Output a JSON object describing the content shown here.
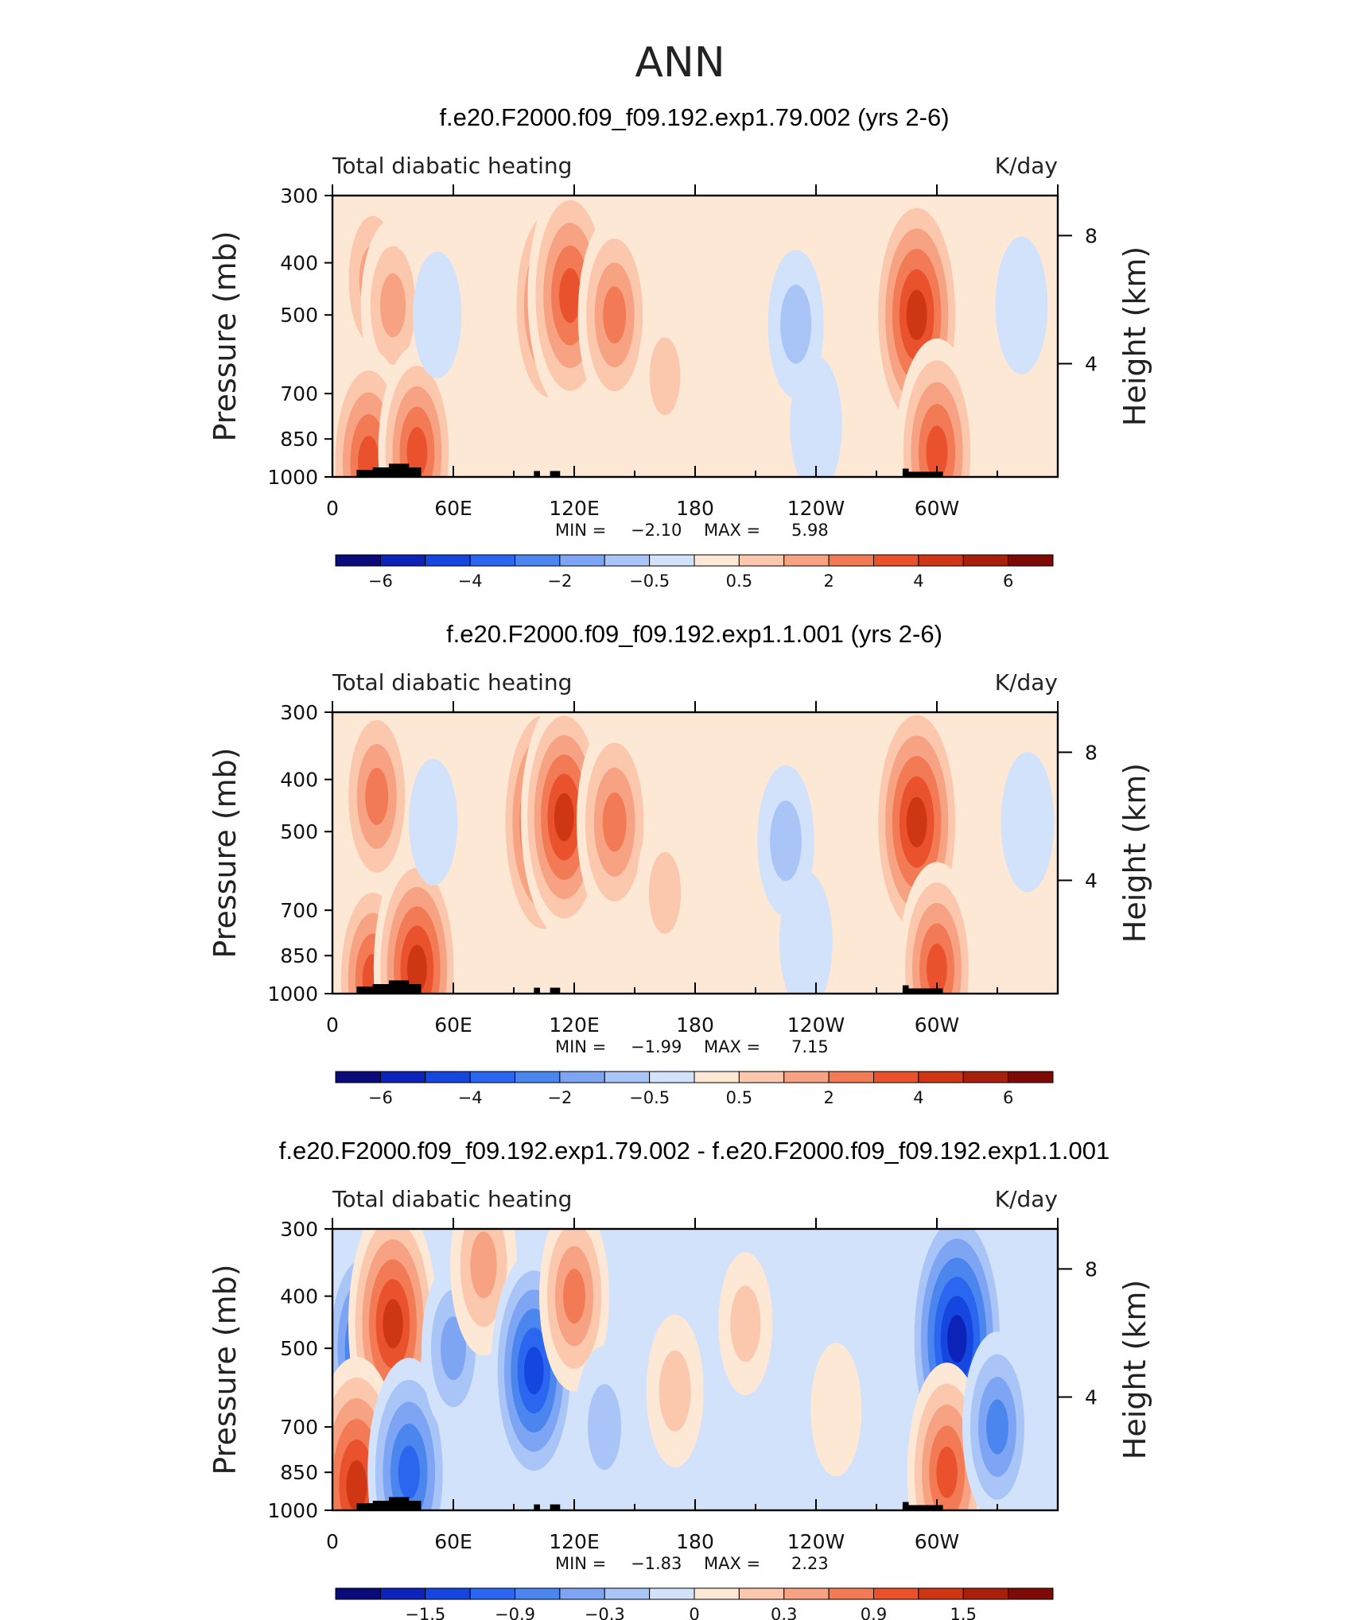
{
  "figure": {
    "main_title": "ANN"
  },
  "chart_data": [
    {
      "type": "heatmap",
      "title": "f.e20.F2000.f09_f09.192.exp1.79.002 (yrs 2-6)",
      "left_label": "Total diabatic heating",
      "right_label": "K/day",
      "ylabel": "Pressure (mb)",
      "ylabel_right": "Height (km)",
      "x_ticks": [
        "0",
        "60E",
        "120E",
        "180",
        "120W",
        "60W"
      ],
      "y_ticks": [
        "300",
        "400",
        "500",
        "700",
        "850",
        "1000"
      ],
      "y_right_ticks": [
        "8",
        "4"
      ],
      "ylim": [
        1000,
        300
      ],
      "stats": {
        "min_label": "MIN =",
        "min": "−2.10",
        "max_label": "MAX =",
        "max": "5.98"
      },
      "colorbar_labels": [
        "−6",
        "−4",
        "−2",
        "−0.5",
        "0.5",
        "2",
        "4",
        "6"
      ],
      "colorbar_colors": [
        "#0a0a7a",
        "#0c22b8",
        "#1646e0",
        "#2a66f0",
        "#4a86ee",
        "#7ea4f4",
        "#a9c4f7",
        "#d2e2fb",
        "#fde8d6",
        "#fbc8ae",
        "#f7a282",
        "#f27a54",
        "#e9522c",
        "#cf3614",
        "#a81f0c",
        "#7e0a06"
      ],
      "features": [
        {
          "lon": 20,
          "plev": 430,
          "v": 3.0
        },
        {
          "lon": 30,
          "plev": 480,
          "v": 2.5
        },
        {
          "lon": 18,
          "plev": 940,
          "v": 4.5
        },
        {
          "lon": 42,
          "plev": 900,
          "v": 4.0
        },
        {
          "lon": 52,
          "plev": 500,
          "v": -0.8
        },
        {
          "lon": 108,
          "plev": 480,
          "v": 4.5
        },
        {
          "lon": 118,
          "plev": 460,
          "v": 4.8
        },
        {
          "lon": 140,
          "plev": 500,
          "v": 3.5
        },
        {
          "lon": 165,
          "plev": 650,
          "v": 1.5
        },
        {
          "lon": 230,
          "plev": 520,
          "v": -1.6
        },
        {
          "lon": 240,
          "plev": 800,
          "v": -1.2
        },
        {
          "lon": 290,
          "plev": 500,
          "v": 5.5
        },
        {
          "lon": 300,
          "plev": 900,
          "v": 4.5
        },
        {
          "lon": 342,
          "plev": 480,
          "v": -1.2
        }
      ]
    },
    {
      "type": "heatmap",
      "title": "f.e20.F2000.f09_f09.192.exp1.1.001 (yrs 2-6)",
      "left_label": "Total diabatic heating",
      "right_label": "K/day",
      "ylabel": "Pressure (mb)",
      "ylabel_right": "Height (km)",
      "x_ticks": [
        "0",
        "60E",
        "120E",
        "180",
        "120W",
        "60W"
      ],
      "y_ticks": [
        "300",
        "400",
        "500",
        "700",
        "850",
        "1000"
      ],
      "y_right_ticks": [
        "8",
        "4"
      ],
      "ylim": [
        1000,
        300
      ],
      "stats": {
        "min_label": "MIN =",
        "min": "−1.99",
        "max_label": "MAX =",
        "max": "7.15"
      },
      "colorbar_labels": [
        "−6",
        "−4",
        "−2",
        "−0.5",
        "0.5",
        "2",
        "4",
        "6"
      ],
      "colorbar_colors": [
        "#0a0a7a",
        "#0c22b8",
        "#1646e0",
        "#2a66f0",
        "#4a86ee",
        "#7ea4f4",
        "#a9c4f7",
        "#d2e2fb",
        "#fde8d6",
        "#fbc8ae",
        "#f7a282",
        "#f27a54",
        "#e9522c",
        "#cf3614",
        "#a81f0c",
        "#7e0a06"
      ],
      "features": [
        {
          "lon": 22,
          "plev": 430,
          "v": 3.5
        },
        {
          "lon": 20,
          "plev": 940,
          "v": 4.0
        },
        {
          "lon": 42,
          "plev": 900,
          "v": 5.0
        },
        {
          "lon": 50,
          "plev": 480,
          "v": -0.8
        },
        {
          "lon": 105,
          "plev": 480,
          "v": 5.5
        },
        {
          "lon": 115,
          "plev": 470,
          "v": 5.0
        },
        {
          "lon": 140,
          "plev": 480,
          "v": 3.8
        },
        {
          "lon": 165,
          "plev": 650,
          "v": 1.8
        },
        {
          "lon": 225,
          "plev": 520,
          "v": -1.7
        },
        {
          "lon": 235,
          "plev": 800,
          "v": -1.3
        },
        {
          "lon": 290,
          "plev": 480,
          "v": 5.5
        },
        {
          "lon": 300,
          "plev": 900,
          "v": 4.0
        },
        {
          "lon": 345,
          "plev": 480,
          "v": -1.3
        }
      ]
    },
    {
      "type": "heatmap",
      "title": "f.e20.F2000.f09_f09.192.exp1.79.002 - f.e20.F2000.f09_f09.192.exp1.1.001",
      "left_label": "Total diabatic heating",
      "right_label": "K/day",
      "ylabel": "Pressure (mb)",
      "ylabel_right": "Height (km)",
      "x_ticks": [
        "0",
        "60E",
        "120E",
        "180",
        "120W",
        "60W"
      ],
      "y_ticks": [
        "300",
        "400",
        "500",
        "700",
        "850",
        "1000"
      ],
      "y_right_ticks": [
        "8",
        "4"
      ],
      "ylim": [
        1000,
        300
      ],
      "stats": {
        "min_label": "MIN =",
        "min": "−1.83",
        "max_label": "MAX =",
        "max": "2.23"
      },
      "colorbar_labels": [
        "−1.5",
        "−0.9",
        "−0.3",
        "0",
        "0.3",
        "0.9",
        "1.5"
      ],
      "colorbar_colors": [
        "#0a0a7a",
        "#0c22b8",
        "#1646e0",
        "#2a66f0",
        "#4a86ee",
        "#7ea4f4",
        "#a9c4f7",
        "#d2e2fb",
        "#fde8d6",
        "#fbc8ae",
        "#f7a282",
        "#f27a54",
        "#e9522c",
        "#cf3614",
        "#a81f0c",
        "#7e0a06"
      ],
      "features": [
        {
          "lon": 15,
          "plev": 500,
          "v": -1.2
        },
        {
          "lon": 30,
          "plev": 450,
          "v": 1.5
        },
        {
          "lon": 12,
          "plev": 900,
          "v": 1.6
        },
        {
          "lon": 38,
          "plev": 850,
          "v": -1.3
        },
        {
          "lon": 60,
          "plev": 500,
          "v": -0.7
        },
        {
          "lon": 75,
          "plev": 350,
          "v": 0.8
        },
        {
          "lon": 100,
          "plev": 550,
          "v": -1.4
        },
        {
          "lon": 120,
          "plev": 400,
          "v": 0.9
        },
        {
          "lon": 135,
          "plev": 700,
          "v": -0.6
        },
        {
          "lon": 170,
          "plev": 600,
          "v": 0.5
        },
        {
          "lon": 205,
          "plev": 450,
          "v": 0.4
        },
        {
          "lon": 250,
          "plev": 650,
          "v": 0.3
        },
        {
          "lon": 310,
          "plev": 480,
          "v": -1.8
        },
        {
          "lon": 305,
          "plev": 850,
          "v": 1.2
        },
        {
          "lon": 330,
          "plev": 700,
          "v": -0.9
        }
      ]
    }
  ]
}
